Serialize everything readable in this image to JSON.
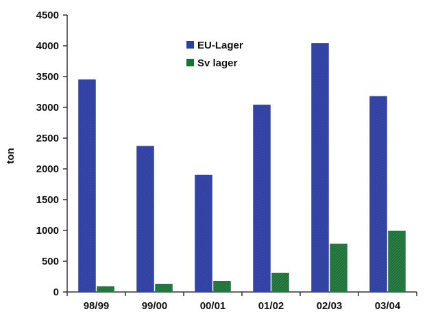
{
  "chart_data": {
    "type": "bar",
    "title": "",
    "xlabel": "",
    "ylabel": "ton",
    "ylim": [
      0,
      4500
    ],
    "yticks": [
      0,
      500,
      1000,
      1500,
      2000,
      2500,
      3000,
      3500,
      4000,
      4500
    ],
    "grid": false,
    "legend_position": "top-center",
    "categories": [
      "98/99",
      "99/00",
      "00/01",
      "01/02",
      "02/03",
      "03/04"
    ],
    "series": [
      {
        "name": "EU-Lager",
        "color": "#2f3f9e",
        "values": [
          3450,
          2370,
          1900,
          3040,
          4040,
          3180
        ]
      },
      {
        "name": "Sv lager",
        "color": "#1f6e3a",
        "values": [
          90,
          130,
          175,
          310,
          780,
          990
        ]
      }
    ]
  }
}
